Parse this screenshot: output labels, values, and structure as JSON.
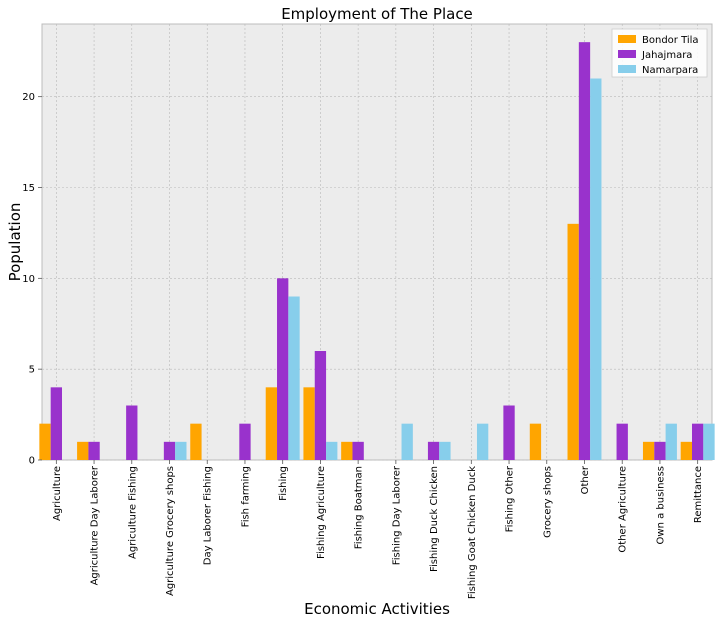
{
  "chart_data": {
    "type": "bar",
    "title": "Employment of The Place",
    "xlabel": "Economic Activities",
    "ylabel": "Population",
    "ylim": [
      0,
      24
    ],
    "yticks": [
      0,
      5,
      10,
      15,
      20
    ],
    "grid": true,
    "legend_position": "top-right",
    "categories": [
      "Agriculture",
      "Agriculture Day Laborer",
      "Agriculture Fishing",
      "Agriculture Grocery shops",
      "Day Laborer Fishing",
      "Fish farming",
      "Fishing",
      "Fishing Agriculture",
      "Fishing Boatman",
      "Fishing Day Laborer",
      "Fishing Duck Chicken",
      "Fishing Goat Chicken Duck",
      "Fishing Other",
      "Grocery shops",
      "Other",
      "Other Agriculture",
      "Own a business",
      "Remittance"
    ],
    "series": [
      {
        "name": "Bondor Tila",
        "color": "#ffa500",
        "values": [
          2,
          1,
          0,
          0,
          2,
          0,
          4,
          4,
          1,
          0,
          0,
          0,
          0,
          2,
          13,
          0,
          1,
          1
        ]
      },
      {
        "name": "Jahajmara",
        "color": "#9932cc",
        "values": [
          4,
          1,
          3,
          1,
          0,
          2,
          10,
          6,
          1,
          0,
          1,
          0,
          3,
          0,
          23,
          2,
          1,
          2
        ]
      },
      {
        "name": "Namarpara",
        "color": "#87ceeb",
        "values": [
          0,
          0,
          0,
          1,
          0,
          0,
          9,
          1,
          0,
          2,
          1,
          2,
          0,
          0,
          21,
          0,
          2,
          2
        ]
      }
    ]
  },
  "colors": {
    "plot_background": "#ececec",
    "axis_line": "#bcbcbc"
  }
}
